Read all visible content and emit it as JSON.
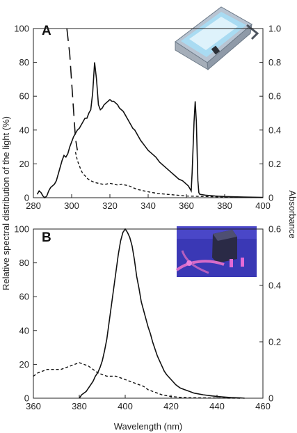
{
  "figure": {
    "ylabel_left": "Relative spectral distribution of the light (%)",
    "ylabel_right": "Absorbance",
    "xlabel": "Wavelength (nm)"
  },
  "chart_data": [
    {
      "type": "line",
      "panel_label": "A",
      "xlim": [
        280,
        400
      ],
      "ylim_left": [
        0,
        100
      ],
      "ylim_right": [
        0,
        1.0
      ],
      "x_ticks": [
        280,
        300,
        320,
        340,
        360,
        380,
        400
      ],
      "y_ticks_left": [
        0,
        20,
        40,
        60,
        80,
        100
      ],
      "y_ticks_right": [
        "0",
        "0.2",
        "0.4",
        "0.6",
        "0.8",
        "1.0"
      ],
      "series": [
        {
          "style": "solid",
          "axis": "left",
          "points": [
            [
              282,
              2
            ],
            [
              283,
              4
            ],
            [
              284,
              3
            ],
            [
              285,
              1
            ],
            [
              286,
              0
            ],
            [
              287,
              1
            ],
            [
              288,
              4
            ],
            [
              289,
              6
            ],
            [
              290,
              7
            ],
            [
              291,
              8
            ],
            [
              292,
              10
            ],
            [
              293,
              14
            ],
            [
              294,
              18
            ],
            [
              295,
              22
            ],
            [
              296,
              25
            ],
            [
              297,
              24
            ],
            [
              298,
              26
            ],
            [
              299,
              30
            ],
            [
              300,
              33
            ],
            [
              301,
              36
            ],
            [
              302,
              38
            ],
            [
              303,
              40
            ],
            [
              304,
              41
            ],
            [
              305,
              43
            ],
            [
              306,
              45
            ],
            [
              307,
              47
            ],
            [
              308,
              47
            ],
            [
              309,
              50
            ],
            [
              310,
              52
            ],
            [
              311,
              62
            ],
            [
              312,
              80
            ],
            [
              313,
              70
            ],
            [
              314,
              55
            ],
            [
              315,
              52
            ],
            [
              316,
              53
            ],
            [
              317,
              55
            ],
            [
              318,
              56
            ],
            [
              319,
              57
            ],
            [
              320,
              58
            ],
            [
              321,
              57
            ],
            [
              322,
              57
            ],
            [
              323,
              56
            ],
            [
              324,
              55
            ],
            [
              325,
              53
            ],
            [
              326,
              52
            ],
            [
              327,
              51
            ],
            [
              328,
              49
            ],
            [
              329,
              47
            ],
            [
              330,
              45
            ],
            [
              331,
              43
            ],
            [
              332,
              41
            ],
            [
              333,
              40
            ],
            [
              334,
              38
            ],
            [
              335,
              36
            ],
            [
              336,
              34
            ],
            [
              338,
              31
            ],
            [
              340,
              28
            ],
            [
              342,
              26
            ],
            [
              344,
              24
            ],
            [
              346,
              21
            ],
            [
              348,
              19
            ],
            [
              350,
              17
            ],
            [
              352,
              15
            ],
            [
              354,
              13
            ],
            [
              356,
              11
            ],
            [
              358,
              10
            ],
            [
              360,
              8
            ],
            [
              361,
              7
            ],
            [
              362,
              5
            ],
            [
              362.5,
              4
            ],
            [
              363,
              15
            ],
            [
              364,
              45
            ],
            [
              364.6,
              57
            ],
            [
              365.2,
              45
            ],
            [
              366,
              10
            ],
            [
              366.5,
              3
            ],
            [
              367,
              2
            ],
            [
              370,
              1.5
            ],
            [
              375,
              1
            ],
            [
              380,
              0.7
            ],
            [
              390,
              0.4
            ],
            [
              400,
              0.2
            ]
          ]
        },
        {
          "style": "dashed",
          "axis": "right",
          "points": [
            [
              302,
              0.27
            ],
            [
              303,
              0.22
            ],
            [
              304,
              0.19
            ],
            [
              305,
              0.16
            ],
            [
              306,
              0.14
            ],
            [
              307,
              0.13
            ],
            [
              308,
              0.115
            ],
            [
              310,
              0.1
            ],
            [
              312,
              0.09
            ],
            [
              314,
              0.085
            ],
            [
              316,
              0.08
            ],
            [
              318,
              0.08
            ],
            [
              320,
              0.085
            ],
            [
              322,
              0.08
            ],
            [
              324,
              0.075
            ],
            [
              326,
              0.08
            ],
            [
              328,
              0.075
            ],
            [
              330,
              0.07
            ],
            [
              332,
              0.06
            ],
            [
              334,
              0.05
            ],
            [
              336,
              0.045
            ],
            [
              338,
              0.04
            ],
            [
              340,
              0.035
            ],
            [
              345,
              0.025
            ],
            [
              350,
              0.02
            ],
            [
              355,
              0.015
            ],
            [
              360,
              0.01
            ],
            [
              370,
              0.007
            ],
            [
              380,
              0.004
            ],
            [
              390,
              0.002
            ],
            [
              400,
              0.001
            ]
          ]
        },
        {
          "style": "long-dash",
          "axis": "right",
          "points": [
            [
              297.5,
              1.0
            ],
            [
              299,
              0.85
            ],
            [
              300.5,
              0.6
            ],
            [
              302,
              0.35
            ],
            [
              303,
              0.28
            ]
          ]
        }
      ]
    },
    {
      "type": "line",
      "panel_label": "B",
      "xlim": [
        360,
        460
      ],
      "ylim_left": [
        0,
        100
      ],
      "ylim_right": [
        0,
        0.6
      ],
      "x_ticks": [
        360,
        380,
        400,
        420,
        440,
        460
      ],
      "y_ticks_left": [
        0,
        20,
        40,
        60,
        80,
        100
      ],
      "y_ticks_right": [
        "0",
        "0.2",
        "0.4",
        "0.6"
      ],
      "series": [
        {
          "style": "solid",
          "axis": "left",
          "points": [
            [
              380,
              0
            ],
            [
              381,
              2
            ],
            [
              382,
              3
            ],
            [
              383,
              4
            ],
            [
              384,
              6
            ],
            [
              385,
              8
            ],
            [
              386,
              10
            ],
            [
              387,
              13
            ],
            [
              388,
              15
            ],
            [
              389,
              18
            ],
            [
              390,
              22
            ],
            [
              391,
              28
            ],
            [
              392,
              35
            ],
            [
              393,
              45
            ],
            [
              394,
              55
            ],
            [
              395,
              65
            ],
            [
              396,
              75
            ],
            [
              397,
              85
            ],
            [
              398,
              93
            ],
            [
              399,
              98
            ],
            [
              400,
              100
            ],
            [
              401,
              98
            ],
            [
              402,
              95
            ],
            [
              403,
              90
            ],
            [
              404,
              82
            ],
            [
              405,
              72
            ],
            [
              406,
              65
            ],
            [
              407,
              57
            ],
            [
              408,
              52
            ],
            [
              409,
              47
            ],
            [
              410,
              42
            ],
            [
              411,
              38
            ],
            [
              412,
              33
            ],
            [
              413,
              29
            ],
            [
              414,
              25
            ],
            [
              415,
              22
            ],
            [
              416,
              19
            ],
            [
              417,
              16
            ],
            [
              418,
              14
            ],
            [
              420,
              11
            ],
            [
              422,
              8
            ],
            [
              424,
              6
            ],
            [
              426,
              5
            ],
            [
              428,
              4
            ],
            [
              430,
              3
            ],
            [
              434,
              2
            ],
            [
              438,
              1.3
            ],
            [
              442,
              0.8
            ],
            [
              446,
              0.4
            ],
            [
              450,
              0.2
            ],
            [
              452,
              0
            ]
          ]
        },
        {
          "style": "dashed",
          "axis": "left",
          "points": [
            [
              360,
              13
            ],
            [
              362,
              15
            ],
            [
              364,
              16
            ],
            [
              366,
              17
            ],
            [
              368,
              17
            ],
            [
              370,
              17
            ],
            [
              372,
              17
            ],
            [
              374,
              18
            ],
            [
              376,
              19
            ],
            [
              378,
              20
            ],
            [
              380,
              21
            ],
            [
              382,
              20
            ],
            [
              384,
              19
            ],
            [
              386,
              17
            ],
            [
              388,
              15
            ],
            [
              390,
              14
            ],
            [
              392,
              13
            ],
            [
              394,
              13
            ],
            [
              396,
              13
            ],
            [
              398,
              12
            ],
            [
              400,
              11
            ],
            [
              402,
              10
            ],
            [
              404,
              9
            ],
            [
              406,
              8
            ],
            [
              408,
              7
            ],
            [
              410,
              5
            ],
            [
              412,
              4
            ],
            [
              414,
              3
            ],
            [
              416,
              2
            ],
            [
              418,
              1.5
            ],
            [
              420,
              1
            ],
            [
              424,
              0.5
            ],
            [
              428,
              0.3
            ],
            [
              432,
              0.2
            ],
            [
              440,
              0.1
            ],
            [
              450,
              0
            ]
          ]
        }
      ]
    }
  ]
}
